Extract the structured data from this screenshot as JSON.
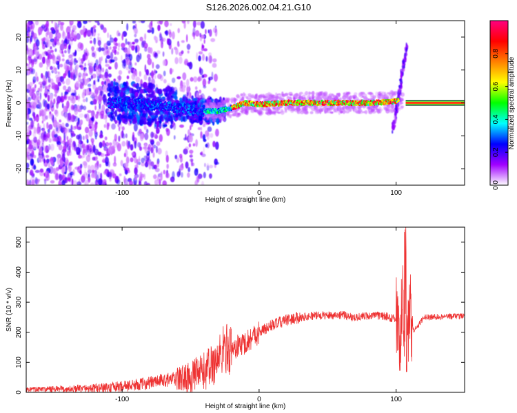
{
  "page": {
    "title": "S126.2026.002.04.21.G10"
  },
  "chart_data": [
    {
      "type": "heatmap",
      "title": "S126.2026.002.04.21.G10",
      "xlabel": "Height of straight line (km)",
      "ylabel": "Frequency (Hz)",
      "xlim": [
        -170,
        150
      ],
      "ylim": [
        -25,
        25
      ],
      "x_ticks": [
        -100,
        0,
        100
      ],
      "y_ticks": [
        -20,
        -10,
        0,
        10,
        20
      ],
      "x_tick_labels": [
        "-100",
        "0",
        "100"
      ],
      "y_tick_labels": [
        "-20",
        "-10",
        "0",
        "10",
        "20"
      ],
      "colorbar": {
        "label": "Normalized spectral amplitude",
        "range": [
          0,
          1
        ],
        "ticks": [
          0.0,
          0.2,
          0.4,
          0.6,
          0.8
        ],
        "tick_labels": [
          "0.0",
          "0.2",
          "0.4",
          "0.6",
          "0.8"
        ],
        "colors": [
          "#ffffff",
          "#a000ff",
          "#0000ff",
          "#00ffff",
          "#00ff00",
          "#ffff00",
          "#ff8000",
          "#ff0000",
          "#ff0080"
        ]
      },
      "ridge": {
        "x": [
          -100,
          -80,
          -60,
          -40,
          -30,
          -20,
          -10,
          0,
          20,
          50,
          80,
          100,
          105,
          110,
          150
        ],
        "y": [
          0,
          -0.5,
          -1.5,
          -2.5,
          -2.5,
          -1.5,
          0,
          -0.5,
          0,
          0,
          0,
          0.5,
          1,
          0,
          0
        ]
      }
    },
    {
      "type": "line",
      "xlabel": "Height of straight line (km)",
      "ylabel": "SNR (10 * v/v)",
      "xlim": [
        -170,
        150
      ],
      "ylim": [
        0,
        550
      ],
      "x_ticks": [
        -100,
        0,
        100
      ],
      "y_ticks": [
        0,
        100,
        200,
        300,
        400,
        500
      ],
      "x_tick_labels": [
        "-100",
        "0",
        "100"
      ],
      "y_tick_labels": [
        "0",
        "100",
        "200",
        "300",
        "400",
        "500"
      ],
      "series": [
        {
          "name": "SNR",
          "color": "#ee3333",
          "x": [
            -170,
            -140,
            -110,
            -90,
            -70,
            -50,
            -40,
            -30,
            -25,
            -20,
            -15,
            -10,
            -5,
            0,
            10,
            20,
            30,
            40,
            60,
            70,
            80,
            90,
            100,
            103,
            105,
            107,
            110,
            113,
            120,
            150
          ],
          "y": [
            10,
            10,
            15,
            25,
            40,
            50,
            70,
            110,
            150,
            140,
            155,
            165,
            185,
            200,
            225,
            240,
            250,
            255,
            258,
            250,
            255,
            255,
            245,
            200,
            320,
            80,
            280,
            200,
            250,
            255
          ]
        }
      ]
    }
  ]
}
